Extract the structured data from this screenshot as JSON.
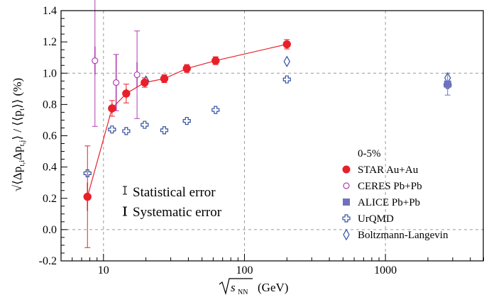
{
  "chart_data": {
    "type": "scatter",
    "x_scale": "log",
    "xlim": [
      5,
      5000
    ],
    "ylim": [
      -0.2,
      1.4
    ],
    "grid": "dashed at x=10, 100, 1000 and y=0.0, 1.0",
    "xlabel": {
      "root": "s",
      "sub": "NN",
      "unit": "(GeV)"
    },
    "ylabel": "√⟨Δp_t,i Δp_t,j⟩ / ⟨⟨p_t⟩⟩ (%)",
    "xticks": [
      {
        "value": 10,
        "label": "10"
      },
      {
        "value": 100,
        "label": "100"
      },
      {
        "value": 1000,
        "label": "1000"
      }
    ],
    "yticks": [
      {
        "value": -0.2,
        "label": "-0.2"
      },
      {
        "value": 0.0,
        "label": "0.0"
      },
      {
        "value": 0.2,
        "label": "0.2"
      },
      {
        "value": 0.4,
        "label": "0.4"
      },
      {
        "value": 0.6,
        "label": "0.6"
      },
      {
        "value": 0.8,
        "label": "0.8"
      },
      {
        "value": 1.0,
        "label": "1.0"
      },
      {
        "value": 1.2,
        "label": "1.2"
      },
      {
        "value": 1.4,
        "label": "1.4"
      }
    ],
    "legend": {
      "placement": "bottom-right",
      "title": "0-5%",
      "entries": [
        {
          "key": "star",
          "label": "STAR Au+Au"
        },
        {
          "key": "ceres",
          "label": "CERES Pb+Pb"
        },
        {
          "key": "alice",
          "label": "ALICE Pb+Pb"
        },
        {
          "key": "urqmd",
          "label": "UrQMD"
        },
        {
          "key": "bl",
          "label": "Boltzmann-Langevin"
        }
      ]
    },
    "annotations": [
      {
        "key": "stat",
        "label": "Statistical error"
      },
      {
        "key": "sys",
        "label": "Systematic error"
      }
    ],
    "series": [
      {
        "key": "star",
        "name": "STAR Au+Au",
        "color": "#e8202a",
        "marker": "filled-circle",
        "connect": true,
        "points": [
          {
            "x": 7.7,
            "y": 0.21,
            "stat": 0.09,
            "sys": 0.325
          },
          {
            "x": 11.5,
            "y": 0.775,
            "stat": 0.03,
            "sys": 0.05
          },
          {
            "x": 14.5,
            "y": 0.87,
            "stat": 0.03,
            "sys": 0.06
          },
          {
            "x": 19.6,
            "y": 0.94,
            "stat": 0.02,
            "sys": 0.03
          },
          {
            "x": 27,
            "y": 0.965,
            "stat": 0.015,
            "sys": 0.025
          },
          {
            "x": 39,
            "y": 1.03,
            "stat": 0.015,
            "sys": 0.025
          },
          {
            "x": 62.4,
            "y": 1.08,
            "stat": 0.015,
            "sys": 0.025
          },
          {
            "x": 200,
            "y": 1.185,
            "stat": 0.01,
            "sys": 0.03
          }
        ]
      },
      {
        "key": "ceres",
        "name": "CERES Pb+Pb",
        "color": "#b040b0",
        "marker": "open-circle",
        "points": [
          {
            "x": 8.7,
            "y": 1.08,
            "stat": 0.09,
            "sys": 0.42
          },
          {
            "x": 12.3,
            "y": 0.94,
            "stat": 0.18,
            "sys": 0.18
          },
          {
            "x": 17.3,
            "y": 0.99,
            "stat": 0.08,
            "sys": 0.28
          }
        ]
      },
      {
        "key": "alice",
        "name": "ALICE Pb+Pb",
        "color": "#7070c0",
        "marker": "filled-square",
        "points": [
          {
            "x": 2760,
            "y": 0.93,
            "stat": 0.02,
            "sys": 0.07
          }
        ]
      },
      {
        "key": "urqmd",
        "name": "UrQMD",
        "color": "#3050a0",
        "marker": "open-cross",
        "points": [
          {
            "x": 7.7,
            "y": 0.36
          },
          {
            "x": 11.5,
            "y": 0.64
          },
          {
            "x": 14.5,
            "y": 0.63
          },
          {
            "x": 19.6,
            "y": 0.67
          },
          {
            "x": 27,
            "y": 0.635
          },
          {
            "x": 39,
            "y": 0.695
          },
          {
            "x": 62.4,
            "y": 0.765
          },
          {
            "x": 200,
            "y": 0.96
          },
          {
            "x": 2760,
            "y": 0.925
          }
        ]
      },
      {
        "key": "bl",
        "name": "Boltzmann-Langevin",
        "color": "#3050a0",
        "marker": "open-diamond",
        "points": [
          {
            "x": 20,
            "y": 0.95
          },
          {
            "x": 200,
            "y": 1.075
          },
          {
            "x": 2760,
            "y": 0.97
          }
        ]
      }
    ]
  }
}
